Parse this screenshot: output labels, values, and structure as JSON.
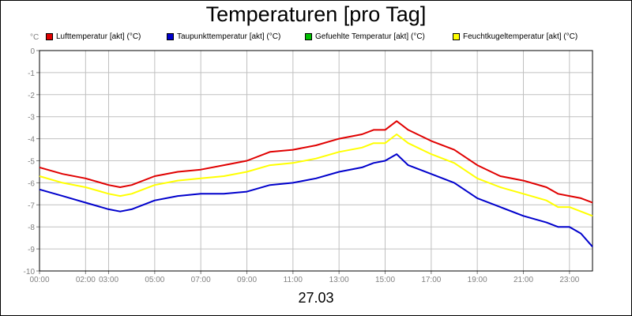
{
  "title": "Temperaturen [pro Tag]",
  "unit_label": "°C",
  "date_label": "27.03",
  "legend": [
    {
      "label": "Lufttemperatur [akt] (°C)",
      "color": "#e00000"
    },
    {
      "label": "Taupunkttemperatur [akt] (°C)",
      "color": "#0000cc"
    },
    {
      "label": "Gefuehlte Temperatur [akt] (°C)",
      "color": "#00c000"
    },
    {
      "label": "Feuchtkugeltemperatur [akt] (°C)",
      "color": "#ffff00"
    }
  ],
  "chart_data": {
    "type": "line",
    "title": "Temperaturen [pro Tag]",
    "ylabel": "°C",
    "xlim": [
      0,
      24
    ],
    "ylim": [
      -10,
      0
    ],
    "grid": true,
    "legend_position": "top",
    "x_ticks": [
      {
        "x": 0,
        "label": "00:00"
      },
      {
        "x": 2,
        "label": "02:00"
      },
      {
        "x": 3,
        "label": "03:00"
      },
      {
        "x": 5,
        "label": "05:00"
      },
      {
        "x": 7,
        "label": "07:00"
      },
      {
        "x": 9,
        "label": "09:00"
      },
      {
        "x": 11,
        "label": "11:00"
      },
      {
        "x": 13,
        "label": "13:00"
      },
      {
        "x": 15,
        "label": "15:00"
      },
      {
        "x": 17,
        "label": "17:00"
      },
      {
        "x": 19,
        "label": "19:00"
      },
      {
        "x": 21,
        "label": "21:00"
      },
      {
        "x": 23,
        "label": "23:00"
      }
    ],
    "y_ticks": [
      0,
      -1,
      -2,
      -3,
      -4,
      -5,
      -6,
      -7,
      -8,
      -9,
      -10
    ],
    "x": [
      0,
      1,
      2,
      3,
      3.5,
      4,
      5,
      6,
      7,
      8,
      9,
      10,
      11,
      12,
      13,
      14,
      14.5,
      15,
      15.5,
      16,
      17,
      18,
      19,
      20,
      21,
      22,
      22.5,
      23,
      23.5,
      24
    ],
    "series": [
      {
        "name": "Lufttemperatur [akt] (°C)",
        "color": "#e00000",
        "values": [
          -5.3,
          -5.6,
          -5.8,
          -6.1,
          -6.2,
          -6.1,
          -5.7,
          -5.5,
          -5.4,
          -5.2,
          -5.0,
          -4.6,
          -4.5,
          -4.3,
          -4.0,
          -3.8,
          -3.6,
          -3.6,
          -3.2,
          -3.6,
          -4.1,
          -4.5,
          -5.2,
          -5.7,
          -5.9,
          -6.2,
          -6.5,
          -6.6,
          -6.7,
          -6.9
        ]
      },
      {
        "name": "Taupunkttemperatur [akt] (°C)",
        "color": "#0000cc",
        "values": [
          -6.3,
          -6.6,
          -6.9,
          -7.2,
          -7.3,
          -7.2,
          -6.8,
          -6.6,
          -6.5,
          -6.5,
          -6.4,
          -6.1,
          -6.0,
          -5.8,
          -5.5,
          -5.3,
          -5.1,
          -5.0,
          -4.7,
          -5.2,
          -5.6,
          -6.0,
          -6.7,
          -7.1,
          -7.5,
          -7.8,
          -8.0,
          -8.0,
          -8.3,
          -8.9
        ]
      },
      {
        "name": "Feuchtkugeltemperatur [akt] (°C)",
        "color": "#ffff00",
        "values": [
          -5.7,
          -6.0,
          -6.2,
          -6.5,
          -6.6,
          -6.5,
          -6.1,
          -5.9,
          -5.8,
          -5.7,
          -5.5,
          -5.2,
          -5.1,
          -4.9,
          -4.6,
          -4.4,
          -4.2,
          -4.2,
          -3.8,
          -4.2,
          -4.7,
          -5.1,
          -5.8,
          -6.2,
          -6.5,
          -6.8,
          -7.1,
          -7.1,
          -7.3,
          -7.5
        ]
      }
    ]
  }
}
